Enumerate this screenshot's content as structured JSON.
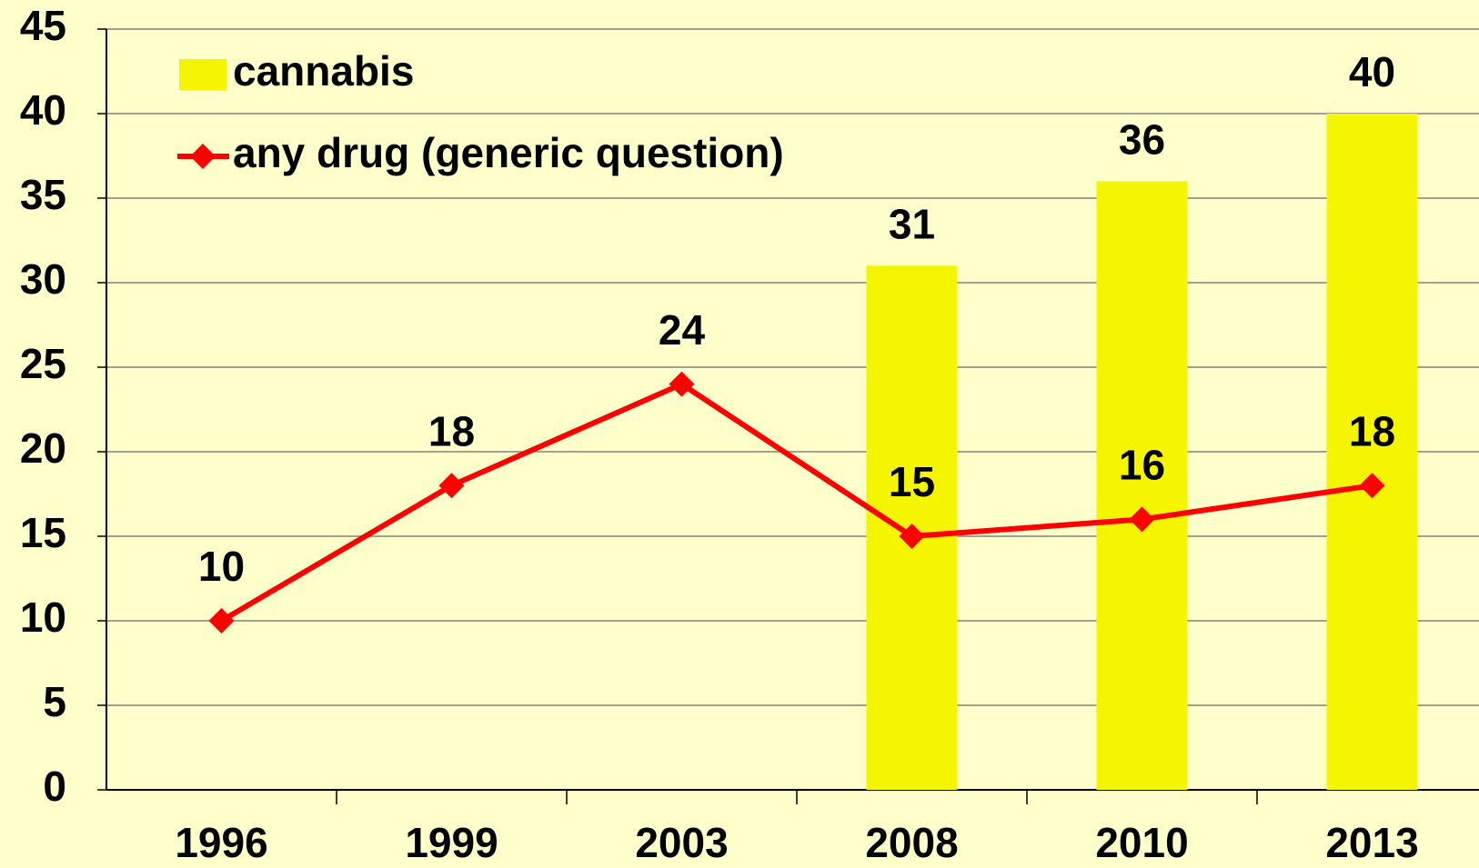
{
  "chart_data": {
    "type": "bar_line",
    "categories": [
      "1996",
      "1999",
      "2003",
      "2008",
      "2010",
      "2013"
    ],
    "series": [
      {
        "name": "cannabis",
        "type": "bar",
        "color": "#f5f500",
        "values": [
          null,
          null,
          null,
          31,
          36,
          40
        ]
      },
      {
        "name": "any drug (generic question)",
        "type": "line",
        "color": "#ff0000",
        "values": [
          10,
          18,
          24,
          15,
          16,
          18
        ]
      }
    ],
    "ylim": [
      0,
      45
    ],
    "yticks": [
      0,
      5,
      10,
      15,
      20,
      25,
      30,
      35,
      40,
      45
    ],
    "grid": true,
    "legend": "top-left"
  }
}
